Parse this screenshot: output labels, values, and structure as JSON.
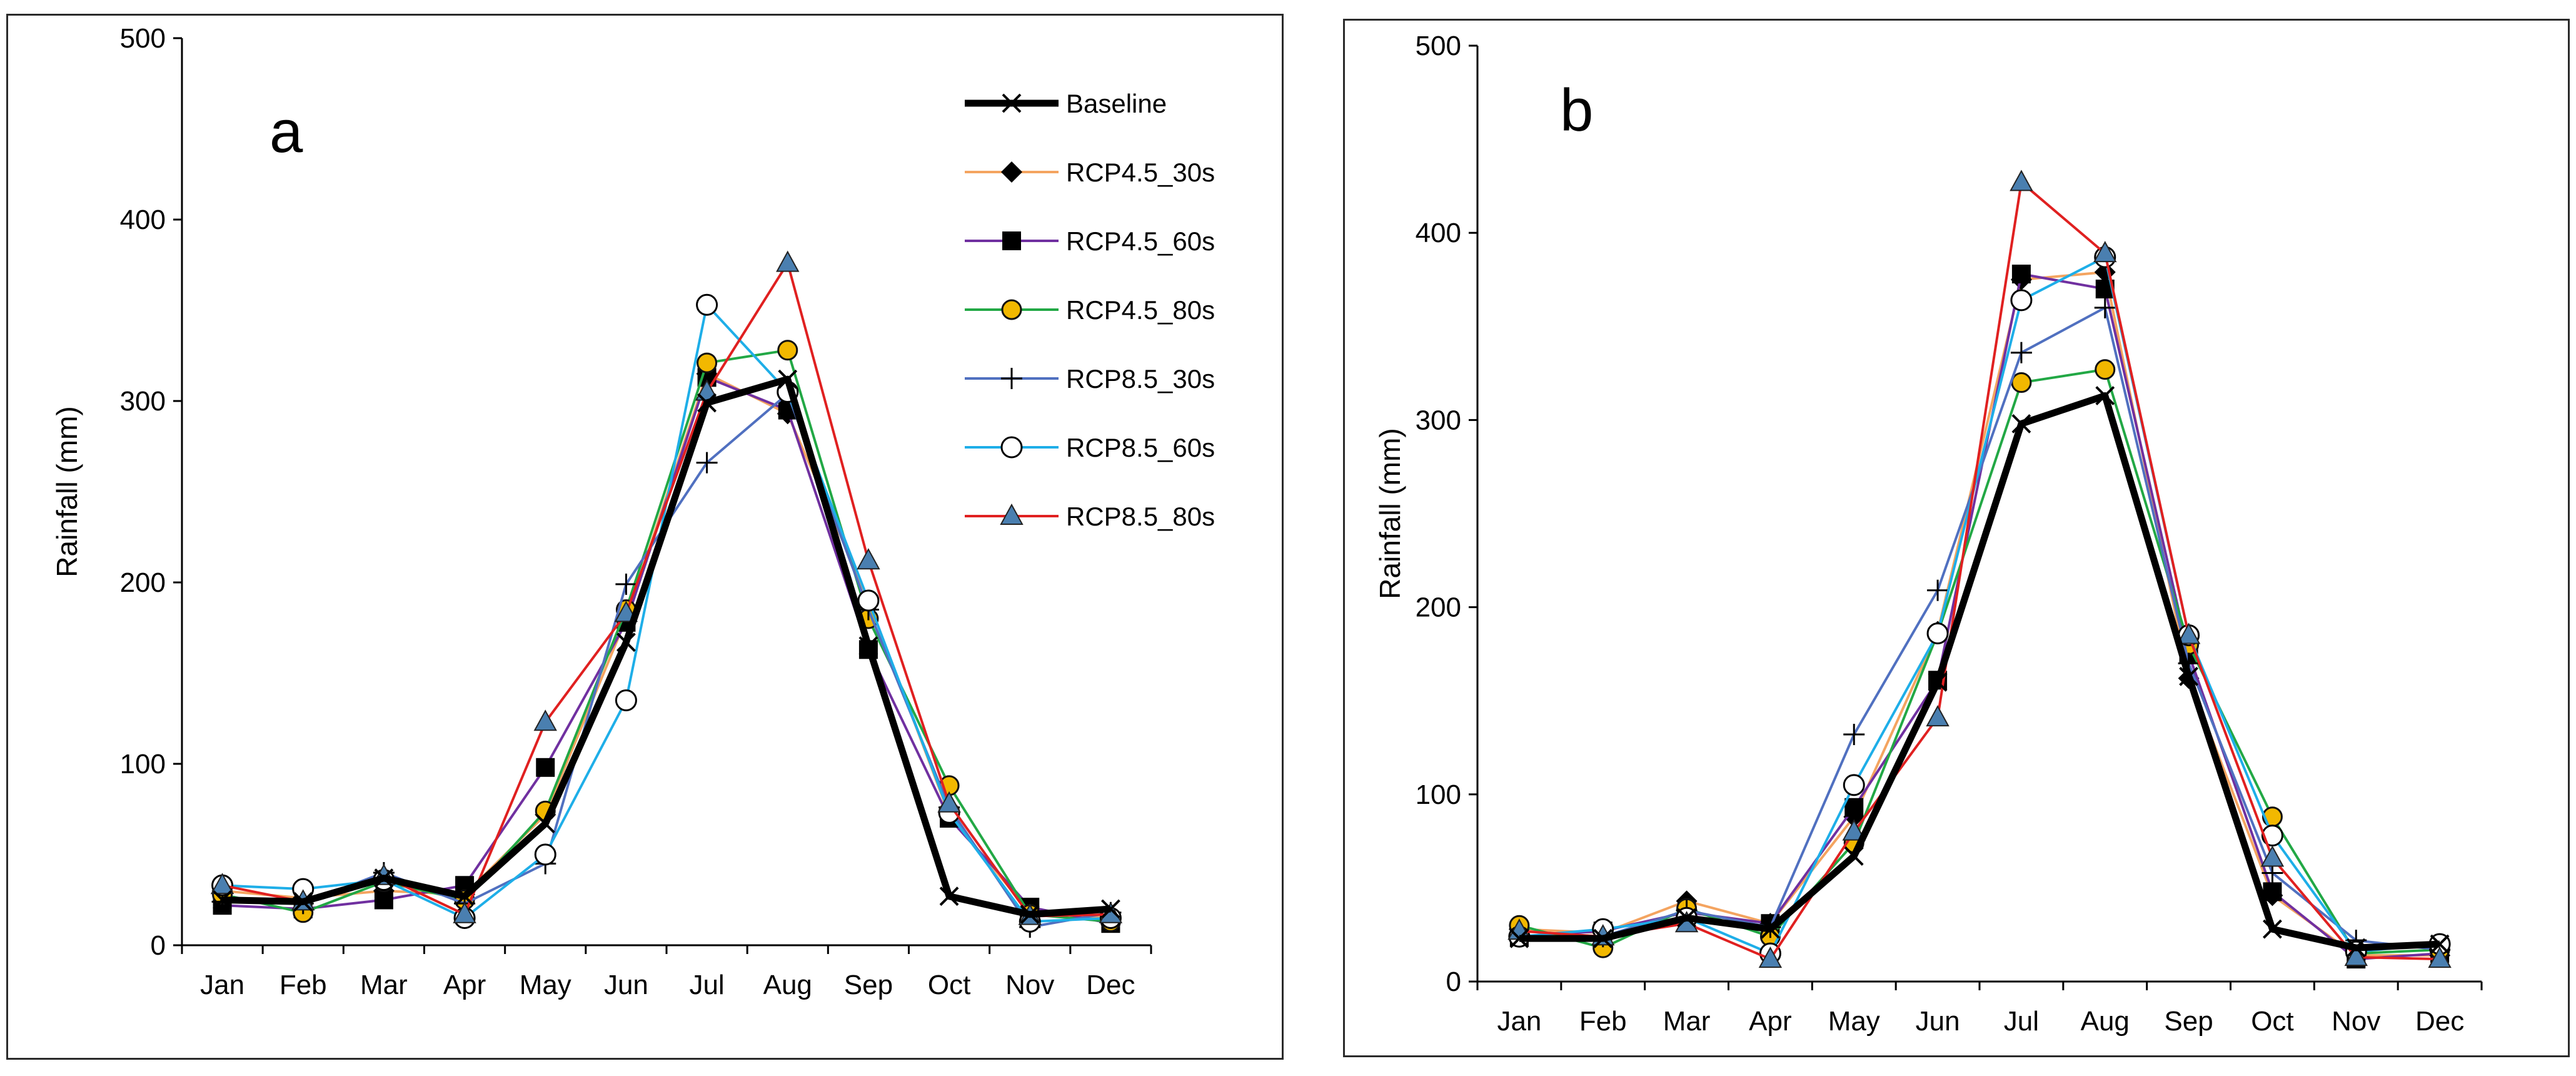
{
  "chart_data": [
    {
      "type": "line",
      "panel_label": "a",
      "ylabel": "Rainfall (mm)",
      "xlabel": "",
      "ylim": [
        0,
        500
      ],
      "yticks": [
        0,
        100,
        200,
        300,
        400,
        500
      ],
      "categories": [
        "Jan",
        "Feb",
        "Mar",
        "Apr",
        "May",
        "Jun",
        "Jul",
        "Aug",
        "Sep",
        "Oct",
        "Nov",
        "Dec"
      ],
      "legend_position": "top-right",
      "grid": false,
      "series": [
        {
          "name": "Baseline",
          "color": "#000000",
          "marker": "x",
          "values": [
            25,
            24,
            37,
            27,
            67,
            167,
            299,
            312,
            165,
            27,
            17,
            20
          ]
        },
        {
          "name": "RCP4.5_30s",
          "color": "#f4a460",
          "marker": "diamond",
          "values": [
            30,
            26,
            30,
            28,
            72,
            180,
            315,
            293,
            190,
            72,
            18,
            15
          ]
        },
        {
          "name": "RCP4.5_60s",
          "color": "#7030a0",
          "marker": "square",
          "values": [
            22,
            20,
            25,
            33,
            98,
            178,
            313,
            295,
            163,
            70,
            21,
            12
          ]
        },
        {
          "name": "RCP4.5_80s",
          "color": "#22a845",
          "marker": "circle-y",
          "values": [
            28,
            18,
            35,
            25,
            74,
            185,
            321,
            328,
            180,
            88,
            17,
            13
          ]
        },
        {
          "name": "RCP8.5_30s",
          "color": "#5070c0",
          "marker": "plus",
          "values": [
            24,
            23,
            40,
            23,
            45,
            199,
            266,
            304,
            185,
            76,
            10,
            18
          ]
        },
        {
          "name": "RCP8.5_60s",
          "color": "#1eaee8",
          "marker": "circle-o",
          "values": [
            33,
            31,
            36,
            15,
            50,
            135,
            353,
            305,
            190,
            73,
            13,
            15
          ]
        },
        {
          "name": "RCP8.5_80s",
          "color": "#e02020",
          "marker": "triangle",
          "values": [
            33,
            24,
            38,
            17,
            123,
            183,
            305,
            376,
            212,
            78,
            16,
            17
          ]
        }
      ]
    },
    {
      "type": "line",
      "panel_label": "b",
      "ylabel": "Rainfall (mm)",
      "xlabel": "",
      "ylim": [
        0,
        500
      ],
      "yticks": [
        0,
        100,
        200,
        300,
        400,
        500
      ],
      "categories": [
        "Jan",
        "Feb",
        "Mar",
        "Apr",
        "May",
        "Jun",
        "Jul",
        "Aug",
        "Sep",
        "Oct",
        "Nov",
        "Dec"
      ],
      "grid": false,
      "series": [
        {
          "name": "Baseline",
          "color": "#000000",
          "marker": "x",
          "values": [
            23,
            23,
            34,
            28,
            67,
            160,
            298,
            313,
            163,
            28,
            18,
            20
          ]
        },
        {
          "name": "RCP4.5_30s",
          "color": "#f4a460",
          "marker": "diamond",
          "values": [
            28,
            26,
            43,
            31,
            88,
            187,
            375,
            379,
            162,
            46,
            14,
            14
          ]
        },
        {
          "name": "RCP4.5_60s",
          "color": "#7030a0",
          "marker": "square",
          "values": [
            24,
            27,
            37,
            31,
            93,
            161,
            378,
            370,
            175,
            48,
            12,
            15
          ]
        },
        {
          "name": "RCP4.5_80s",
          "color": "#22a845",
          "marker": "circle-y",
          "values": [
            30,
            18,
            39,
            24,
            74,
            186,
            320,
            327,
            180,
            88,
            15,
            17
          ]
        },
        {
          "name": "RCP8.5_30s",
          "color": "#5070c0",
          "marker": "plus",
          "values": [
            24,
            24,
            38,
            29,
            132,
            209,
            336,
            360,
            170,
            58,
            22,
            17
          ]
        },
        {
          "name": "RCP8.5_60s",
          "color": "#1eaee8",
          "marker": "circle-o",
          "values": [
            24,
            28,
            34,
            15,
            105,
            186,
            364,
            387,
            185,
            78,
            16,
            20
          ]
        },
        {
          "name": "RCP8.5_80s",
          "color": "#e02020",
          "marker": "triangle",
          "values": [
            27,
            24,
            31,
            12,
            80,
            141,
            427,
            389,
            185,
            66,
            13,
            12
          ]
        }
      ]
    }
  ]
}
